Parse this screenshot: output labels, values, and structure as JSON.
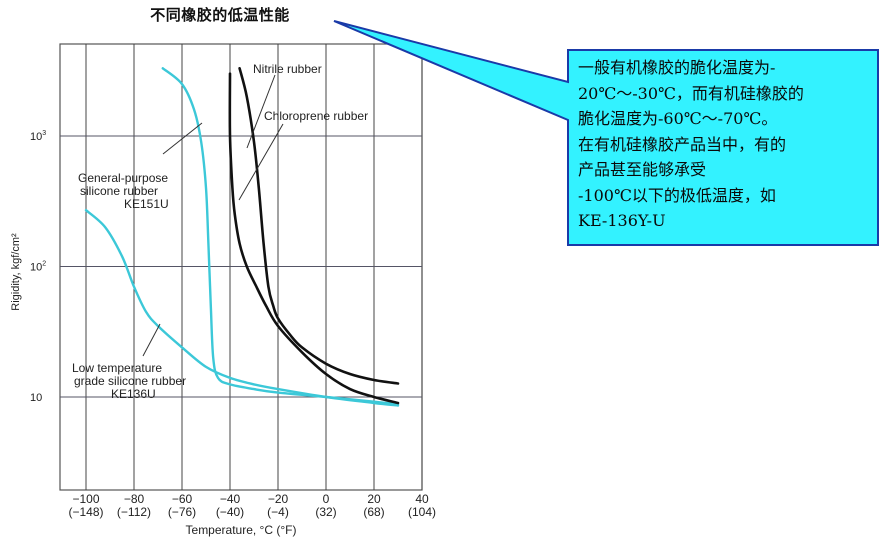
{
  "title": "不同橡胶的低温性能",
  "callout": {
    "lines": [
      "一般有机橡胶的脆化温度为-",
      "20℃～-30℃，而有机硅橡胶的",
      "脆化温度为-60℃～-70℃。",
      "在有机硅橡胶产品当中，有的",
      "产品甚至能够承受",
      "-100℃以下的极低温度，如",
      "KE-136Y-U"
    ],
    "fill": "#33f2ff",
    "border": "#1a3aa8"
  },
  "chart_data": {
    "type": "line",
    "title": "不同橡胶的低温性能",
    "xlabel": "Temperature, °C (°F)",
    "ylabel": "Rigidity, kgf/cm²",
    "yscale": "log",
    "xlim": [
      -105,
      40
    ],
    "ylim": [
      2,
      5000
    ],
    "grid": true,
    "x_ticks": [
      {
        "c": "−100",
        "f": "(−148)"
      },
      {
        "c": "−80",
        "f": "(−112)"
      },
      {
        "c": "−60",
        "f": "(−76)"
      },
      {
        "c": "−40",
        "f": "(−40)"
      },
      {
        "c": "−20",
        "f": "(−4)"
      },
      {
        "c": "0",
        "f": "(32)"
      },
      {
        "c": "20",
        "f": "(68)"
      },
      {
        "c": "40",
        "f": "(104)"
      }
    ],
    "y_ticks": [
      {
        "label": "10³",
        "base": "10",
        "exp": "3",
        "value": 1000
      },
      {
        "label": "10²",
        "base": "10",
        "exp": "2",
        "value": 100
      },
      {
        "label": "10",
        "base": "10",
        "exp": "",
        "value": 10
      }
    ],
    "series": [
      {
        "name": "General-purpose silicone rubber KE151U",
        "label_lines": [
          "General-purpose",
          "silicone rubber",
          "KE151U"
        ],
        "color": "#3cc8d8",
        "x": [
          -68,
          -60,
          -55,
          -52,
          -50,
          -49,
          -48,
          -47,
          -45,
          -40,
          -30,
          -20,
          0,
          20,
          30
        ],
        "y": [
          3300,
          2500,
          1600,
          900,
          400,
          150,
          50,
          20,
          14,
          12.5,
          11.5,
          10.8,
          10,
          9.2,
          8.8
        ]
      },
      {
        "name": "Low temperature grade silicone rubber KE136U",
        "label_lines": [
          "Low temperature",
          "grade silicone rubber",
          "KE136U"
        ],
        "color": "#3cc8d8",
        "x": [
          -100,
          -92,
          -85,
          -80,
          -75,
          -70,
          -60,
          -50,
          -40,
          -30,
          -20,
          0,
          20,
          30
        ],
        "y": [
          270,
          200,
          120,
          70,
          45,
          35,
          24,
          17,
          14,
          12.5,
          11.5,
          10,
          9,
          8.6
        ]
      },
      {
        "name": "Nitrile rubber",
        "label_lines": [
          "Nitrile rubber"
        ],
        "color": "#111111",
        "x": [
          -36,
          -33,
          -30,
          -28,
          -26,
          -24,
          -22,
          -20,
          -15,
          -10,
          0,
          10,
          20,
          30
        ],
        "y": [
          3300,
          2000,
          900,
          400,
          150,
          70,
          50,
          40,
          30,
          24,
          18,
          15,
          13.5,
          12.7
        ]
      },
      {
        "name": "Chloroprene rubber",
        "label_lines": [
          "Chloroprene rubber"
        ],
        "color": "#111111",
        "x": [
          -40,
          -40,
          -39,
          -38,
          -36,
          -33,
          -29,
          -25,
          -20,
          -10,
          0,
          10,
          20,
          30
        ],
        "y": [
          3000,
          1000,
          400,
          250,
          150,
          100,
          70,
          50,
          35,
          22,
          15,
          11.5,
          10,
          9
        ]
      }
    ]
  }
}
